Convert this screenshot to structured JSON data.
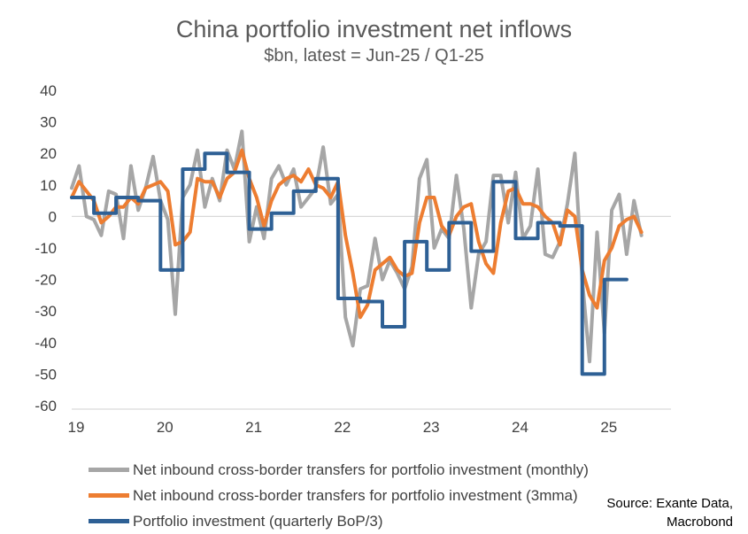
{
  "chart_data": {
    "type": "line",
    "title": "China portfolio investment net inflows",
    "subtitle": "$bn, latest = Jun-25 / Q1-25",
    "xlabel": "",
    "ylabel": "",
    "ylim": [
      -60,
      40
    ],
    "yticks": [
      40,
      30,
      20,
      10,
      0,
      -10,
      -20,
      -30,
      -40,
      -50,
      -60
    ],
    "xlim": [
      2019.0,
      2025.75
    ],
    "xticks": [
      {
        "value": 2019,
        "label": "19"
      },
      {
        "value": 2020,
        "label": "20"
      },
      {
        "value": 2021,
        "label": "21"
      },
      {
        "value": 2022,
        "label": "22"
      },
      {
        "value": 2023,
        "label": "23"
      },
      {
        "value": 2024,
        "label": "24"
      },
      {
        "value": 2025,
        "label": "25"
      }
    ],
    "series": [
      {
        "name": "Net inbound cross-border transfers for portfolio investment (monthly)",
        "color": "#a6a6a6",
        "step": false,
        "x": [
          2019.0,
          2019.083,
          2019.167,
          2019.25,
          2019.333,
          2019.417,
          2019.5,
          2019.583,
          2019.667,
          2019.75,
          2019.833,
          2019.917,
          2020.0,
          2020.083,
          2020.167,
          2020.25,
          2020.333,
          2020.417,
          2020.5,
          2020.583,
          2020.667,
          2020.75,
          2020.833,
          2020.917,
          2021.0,
          2021.083,
          2021.167,
          2021.25,
          2021.333,
          2021.417,
          2021.5,
          2021.583,
          2021.667,
          2021.75,
          2021.833,
          2021.917,
          2022.0,
          2022.083,
          2022.167,
          2022.25,
          2022.333,
          2022.417,
          2022.5,
          2022.583,
          2022.667,
          2022.75,
          2022.833,
          2022.917,
          2023.0,
          2023.083,
          2023.167,
          2023.25,
          2023.333,
          2023.417,
          2023.5,
          2023.583,
          2023.667,
          2023.75,
          2023.833,
          2023.917,
          2024.0,
          2024.083,
          2024.167,
          2024.25,
          2024.333,
          2024.417,
          2024.5,
          2024.583,
          2024.667,
          2024.75,
          2024.833,
          2024.917,
          2025.0,
          2025.083,
          2025.167,
          2025.25,
          2025.333,
          2025.417
        ],
        "values": [
          9,
          16,
          0,
          -1,
          -6,
          8,
          7,
          -7,
          16,
          2,
          9,
          19,
          5,
          -1,
          -31,
          6,
          10,
          21,
          3,
          12,
          5,
          21,
          15,
          27,
          -8,
          3,
          -7,
          12,
          16,
          10,
          15,
          3,
          6,
          9,
          22,
          4,
          7,
          -32,
          -41,
          -23,
          -22,
          -7,
          -20,
          -14,
          -18,
          -23,
          -16,
          12,
          18,
          -10,
          -4,
          -7,
          13,
          -4,
          -29,
          -12,
          -8,
          13,
          13,
          -2,
          14,
          -7,
          -3,
          15,
          -12,
          -13,
          -8,
          4,
          20,
          -20,
          -46,
          -5,
          -37,
          2,
          7,
          -12,
          5,
          -6
        ]
      },
      {
        "name": "Net inbound cross-border transfers for portfolio investment (3mma)",
        "color": "#ed7d31",
        "step": false,
        "x": [
          2019.0,
          2019.083,
          2019.167,
          2019.25,
          2019.333,
          2019.417,
          2019.5,
          2019.583,
          2019.667,
          2019.75,
          2019.833,
          2019.917,
          2020.0,
          2020.083,
          2020.167,
          2020.25,
          2020.333,
          2020.417,
          2020.5,
          2020.583,
          2020.667,
          2020.75,
          2020.833,
          2020.917,
          2021.0,
          2021.083,
          2021.167,
          2021.25,
          2021.333,
          2021.417,
          2021.5,
          2021.583,
          2021.667,
          2021.75,
          2021.833,
          2021.917,
          2022.0,
          2022.083,
          2022.167,
          2022.25,
          2022.333,
          2022.417,
          2022.5,
          2022.583,
          2022.667,
          2022.75,
          2022.833,
          2022.917,
          2023.0,
          2023.083,
          2023.167,
          2023.25,
          2023.333,
          2023.417,
          2023.5,
          2023.583,
          2023.667,
          2023.75,
          2023.833,
          2023.917,
          2024.0,
          2024.083,
          2024.167,
          2024.25,
          2024.333,
          2024.417,
          2024.5,
          2024.583,
          2024.667,
          2024.75,
          2024.833,
          2024.917,
          2025.0,
          2025.083,
          2025.167,
          2025.25,
          2025.333,
          2025.417
        ],
        "values": [
          6,
          11,
          8,
          5,
          -2,
          0,
          3,
          3,
          6,
          4,
          9,
          10,
          11,
          8,
          -9,
          -8,
          -5,
          12,
          11,
          11,
          6,
          12,
          14,
          21,
          12,
          6,
          -3,
          5,
          10,
          12,
          13,
          11,
          15,
          10,
          9,
          6,
          11,
          -6,
          -18,
          -32,
          -28,
          -17,
          -15,
          -13,
          -17,
          -19,
          -18,
          -2,
          6,
          6,
          -3,
          -6,
          0,
          3,
          4,
          -8,
          -15,
          -18,
          -2,
          8,
          9,
          4,
          4,
          3,
          0,
          -2,
          -9,
          2,
          0,
          -17,
          -25,
          -29,
          -14,
          -10,
          -3,
          -1,
          0,
          -5
        ]
      },
      {
        "name": "Portfolio investment (quarterly BoP/3)",
        "color": "#2e6095",
        "step": true,
        "x": [
          2019.0,
          2019.25,
          2019.5,
          2019.75,
          2020.0,
          2020.25,
          2020.5,
          2020.75,
          2021.0,
          2021.25,
          2021.5,
          2021.75,
          2022.0,
          2022.25,
          2022.5,
          2022.75,
          2023.0,
          2023.25,
          2023.5,
          2023.75,
          2024.0,
          2024.25,
          2024.5,
          2024.75,
          2025.0
        ],
        "values": [
          6,
          1,
          6,
          5,
          -17,
          15,
          20,
          14,
          -4,
          1,
          8,
          12,
          -26,
          -27,
          -35,
          -8,
          -17,
          -2,
          -11,
          11,
          -7,
          -2,
          -3,
          -50,
          -20
        ],
        "end_x": 2025.25
      }
    ],
    "source": [
      "Source: Exante Data,",
      "Macrobond"
    ]
  }
}
